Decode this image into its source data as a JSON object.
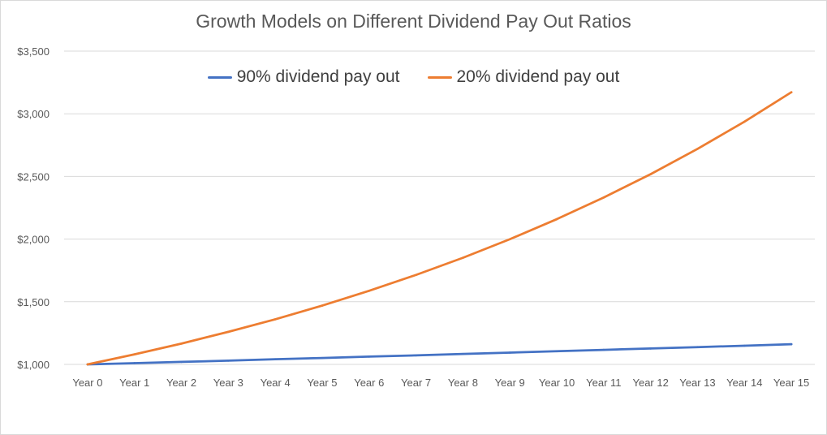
{
  "chart_data": {
    "type": "line",
    "title": "Growth Models on Different Dividend Pay Out Ratios",
    "xlabel": "",
    "ylabel": "",
    "categories": [
      "Year 0",
      "Year 1",
      "Year 2",
      "Year 3",
      "Year 4",
      "Year 5",
      "Year 6",
      "Year 7",
      "Year 8",
      "Year 9",
      "Year 10",
      "Year 11",
      "Year 12",
      "Year 13",
      "Year 14",
      "Year 15"
    ],
    "ylim": [
      1000,
      3500
    ],
    "yticks": [
      1000,
      1500,
      2000,
      2500,
      3000,
      3500
    ],
    "ytick_labels": [
      "$1,000",
      "$1,500",
      "$2,000",
      "$2,500",
      "$3,000",
      "$3,500"
    ],
    "grid": true,
    "legend_position": "top",
    "series": [
      {
        "name": "90% dividend pay out",
        "color": "#4472c4",
        "values": [
          1000,
          1010,
          1020,
          1030,
          1041,
          1051,
          1062,
          1072,
          1083,
          1094,
          1105,
          1116,
          1127,
          1138,
          1149,
          1161
        ]
      },
      {
        "name": "20% dividend pay out",
        "color": "#ed7d31",
        "values": [
          1000,
          1080,
          1166,
          1260,
          1360,
          1469,
          1587,
          1714,
          1851,
          1999,
          2159,
          2332,
          2518,
          2720,
          2937,
          3172
        ]
      }
    ]
  }
}
